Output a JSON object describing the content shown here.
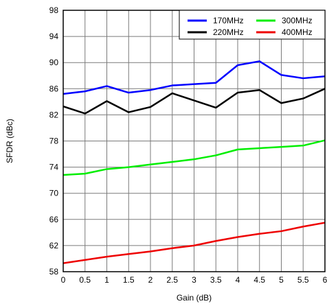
{
  "chart_data": {
    "type": "line",
    "title": "",
    "xlabel": "Gain (dB)",
    "ylabel": "SFDR (dBc)",
    "xlim": [
      0,
      6
    ],
    "ylim": [
      58,
      98
    ],
    "x_ticks": [
      "0",
      "0.5",
      "1",
      "1.5",
      "2",
      "2.5",
      "3",
      "3.5",
      "4",
      "4.5",
      "5",
      "5.5",
      "6"
    ],
    "y_ticks": [
      "58",
      "62",
      "66",
      "70",
      "74",
      "78",
      "82",
      "86",
      "90",
      "94",
      "98"
    ],
    "grid": true,
    "legend_position": "top-right",
    "x": [
      0,
      0.5,
      1,
      1.5,
      2,
      2.5,
      3,
      3.5,
      4,
      4.5,
      5,
      5.5,
      6
    ],
    "series": [
      {
        "name": "170MHz",
        "color": "#0000ff",
        "values": [
          85.2,
          85.6,
          86.4,
          85.4,
          85.8,
          86.5,
          86.7,
          86.9,
          89.6,
          90.2,
          88.1,
          87.6,
          87.9
        ]
      },
      {
        "name": "220MHz",
        "color": "#000000",
        "values": [
          83.3,
          82.2,
          84.1,
          82.4,
          83.2,
          85.3,
          84.2,
          83.1,
          85.4,
          85.8,
          83.8,
          84.5,
          86.0
        ]
      },
      {
        "name": "300MHz",
        "color": "#00ee00",
        "values": [
          72.8,
          73.0,
          73.7,
          74.0,
          74.4,
          74.8,
          75.2,
          75.8,
          76.7,
          76.9,
          77.1,
          77.3,
          78.1
        ]
      },
      {
        "name": "400MHz",
        "color": "#ee0000",
        "values": [
          59.3,
          59.8,
          60.3,
          60.7,
          61.1,
          61.6,
          62.0,
          62.7,
          63.3,
          63.8,
          64.2,
          64.9,
          65.5
        ]
      }
    ]
  }
}
